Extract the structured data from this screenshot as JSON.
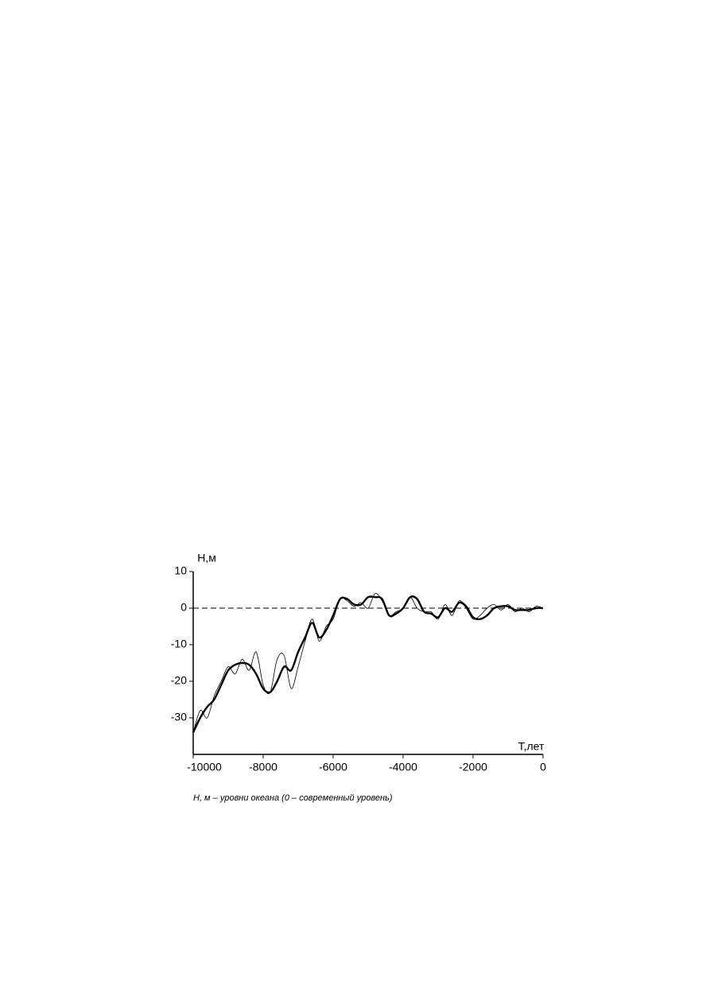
{
  "chart_data": {
    "type": "line",
    "y_label": "Н,м",
    "x_label": "Т,лет",
    "caption": "Н, м – уровни океана (0 – современный уровень)",
    "x": [
      -10000,
      -9800,
      -9600,
      -9400,
      -9200,
      -9000,
      -8800,
      -8600,
      -8400,
      -8200,
      -8000,
      -7800,
      -7600,
      -7400,
      -7200,
      -7000,
      -6800,
      -6600,
      -6400,
      -6200,
      -6000,
      -5800,
      -5600,
      -5400,
      -5200,
      -5000,
      -4800,
      -4600,
      -4400,
      -4200,
      -4000,
      -3800,
      -3600,
      -3400,
      -3200,
      -3000,
      -2800,
      -2600,
      -2400,
      -2200,
      -2000,
      -1800,
      -1600,
      -1400,
      -1200,
      -1000,
      -800,
      -600,
      -400,
      -200,
      0
    ],
    "series": [
      {
        "color": "#000000",
        "width": 2.4,
        "values": [
          -34,
          -30,
          -27,
          -25,
          -21,
          -17,
          -15.5,
          -15,
          -15.5,
          -18,
          -22,
          -23,
          -20,
          -16,
          -17,
          -12,
          -8,
          -4,
          -8,
          -6,
          -2,
          2.5,
          2.5,
          1,
          1,
          3,
          3,
          2.5,
          -2,
          -1.5,
          0,
          3,
          2.5,
          -1,
          -1.5,
          -2.5,
          0,
          -1,
          1.5,
          0.5,
          -2.5,
          -3,
          -2,
          0,
          0.5,
          0.5,
          -0.5,
          -0.5,
          -0.5,
          0,
          0
        ]
      },
      {
        "color": "#000000",
        "width": 0.8,
        "values": [
          -34,
          -28,
          -30,
          -24,
          -20,
          -16,
          -18,
          -14,
          -17,
          -12,
          -21,
          -23,
          -14,
          -13,
          -22,
          -16,
          -9,
          -3,
          -9,
          -5,
          -3,
          2.5,
          2,
          0.5,
          1.5,
          0,
          4,
          2,
          -2,
          -1,
          0,
          3,
          0,
          -1,
          -1,
          -3,
          1,
          -2,
          2,
          0,
          -3,
          -2,
          0,
          1,
          -0.5,
          1,
          -1,
          0,
          -1,
          0.5,
          0
        ]
      }
    ],
    "hline": 0,
    "xlim": [
      -10000,
      0
    ],
    "ylim": [
      -40,
      10
    ],
    "xticks": [
      -10000,
      -8000,
      -6000,
      -4000,
      -2000,
      0
    ],
    "yticks": [
      10,
      0,
      -10,
      -20,
      -30
    ]
  }
}
